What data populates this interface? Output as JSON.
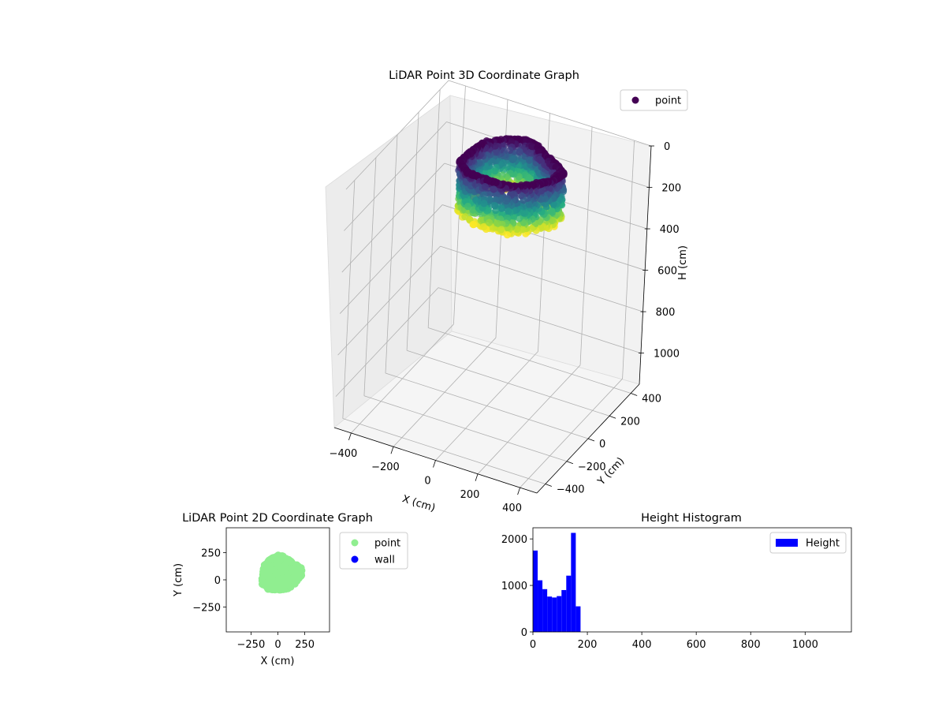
{
  "chart_data": [
    {
      "type": "scatter3d",
      "title": "LiDAR Point 3D Coordinate Graph",
      "xlabel": "X (cm)",
      "ylabel": "Y (cm)",
      "zlabel": "H (cm)",
      "x_ticks": [
        -400,
        -200,
        0,
        200,
        400
      ],
      "y_ticks": [
        -400,
        -200,
        0,
        200,
        400
      ],
      "z_ticks": [
        0,
        200,
        400,
        600,
        800,
        1000
      ],
      "xlim": [
        -480,
        480
      ],
      "ylim": [
        -480,
        480
      ],
      "zlim": [
        1150,
        0
      ],
      "z_inverted": true,
      "grid": true,
      "colormap": "viridis",
      "legend": {
        "position": "top-right",
        "entries": [
          {
            "label": "point",
            "color": "#440154"
          }
        ]
      },
      "cloud": {
        "x_range": [
          -170,
          260
        ],
        "y_range": [
          -100,
          260
        ],
        "h_range": [
          0,
          240
        ]
      }
    },
    {
      "type": "scatter",
      "title": "LiDAR Point 2D Coordinate Graph",
      "xlabel": "X (cm)",
      "ylabel": "Y (cm)",
      "x_ticks": [
        -250,
        0,
        250
      ],
      "y_ticks": [
        -250,
        0,
        250
      ],
      "xlim": [
        -480,
        480
      ],
      "ylim": [
        -480,
        480
      ],
      "series": [
        {
          "name": "point",
          "color": "#90ee90",
          "x_range": [
            -170,
            250
          ],
          "y_range": [
            -105,
            255
          ]
        },
        {
          "name": "wall",
          "color": "#0000ff",
          "points": []
        }
      ],
      "legend": {
        "position": "outside-right"
      }
    },
    {
      "type": "bar",
      "subtype": "histogram",
      "title": "Height Histogram",
      "series": [
        {
          "name": "Height",
          "color": "#0000ff",
          "bin_width": 17.5,
          "bin_start": 0,
          "values": [
            1750,
            1110,
            920,
            760,
            740,
            770,
            900,
            1210,
            2130,
            550
          ]
        }
      ],
      "x_ticks": [
        0,
        200,
        400,
        600,
        800,
        1000
      ],
      "y_ticks": [
        0,
        1000,
        2000
      ],
      "xlim": [
        0,
        1170
      ],
      "ylim": [
        0,
        2240
      ],
      "legend": {
        "position": "top-right"
      }
    }
  ]
}
